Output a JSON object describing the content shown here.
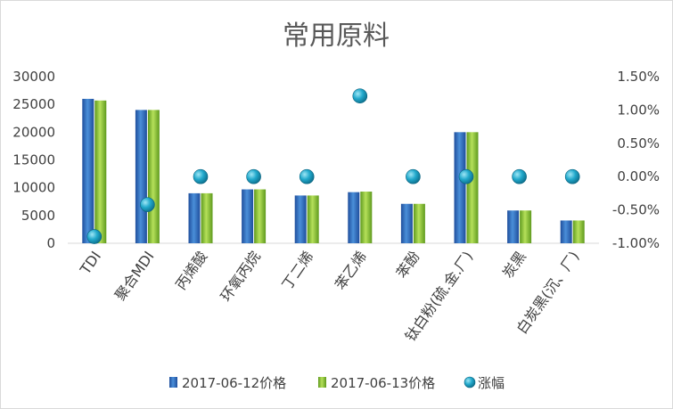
{
  "chart_data": {
    "type": "bar",
    "title": "常用原料",
    "categories": [
      "TDI",
      "聚合MDI",
      "丙烯酸",
      "环氧丙烷",
      "丁二烯",
      "苯乙烯",
      "苯酚",
      "钛白粉(硫.金.厂)",
      "炭黑",
      "白炭黑(沉、厂)"
    ],
    "series": [
      {
        "name": "2017-06-12价格",
        "type": "bar",
        "axis": "left",
        "color": "#2e75b6",
        "values": [
          26000,
          24000,
          9000,
          9700,
          8600,
          9200,
          7100,
          20000,
          5900,
          4100
        ]
      },
      {
        "name": "2017-06-13价格",
        "type": "bar",
        "axis": "left",
        "color": "#8cc63f",
        "values": [
          25700,
          24000,
          9000,
          9700,
          8600,
          9300,
          7100,
          20000,
          5900,
          4100
        ]
      },
      {
        "name": "涨幅",
        "type": "scatter",
        "axis": "right",
        "color": "#1aa6c8",
        "values": [
          -0.9,
          -0.42,
          0.0,
          0.0,
          0.0,
          1.21,
          0.0,
          0.0,
          0.0,
          0.0
        ]
      }
    ],
    "ylim": [
      0,
      30000
    ],
    "y_ticks": [
      "0",
      "5000",
      "10000",
      "15000",
      "20000",
      "25000",
      "30000"
    ],
    "y2lim": [
      -1.0,
      1.5
    ],
    "y2_ticks": [
      "-1.00%",
      "-0.50%",
      "0.00%",
      "0.50%",
      "1.00%",
      "1.50%"
    ],
    "grid": false,
    "legend_position": "bottom"
  }
}
